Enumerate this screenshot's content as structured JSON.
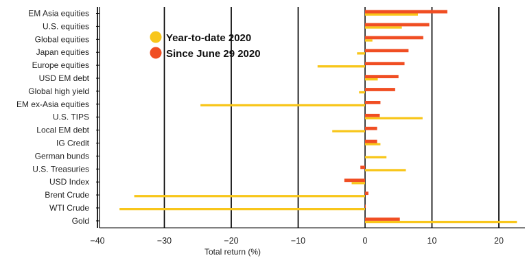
{
  "chart_data": {
    "type": "bar",
    "orientation": "horizontal",
    "categories": [
      "EM Asia equities",
      "U.S. equities",
      "Global equities",
      "Japan equities",
      "Europe equities",
      "USD EM debt",
      "Global high yield",
      "EM ex-Asia equities",
      "U.S. TIPS",
      "Local EM debt",
      "IG Credit",
      "German bunds",
      "U.S. Treasuries",
      "USD Index",
      "Brent Crude",
      "WTI Crude",
      "Gold"
    ],
    "series": [
      {
        "name": "Since June 29 2020",
        "color": "#f04e23",
        "values": [
          12.3,
          9.6,
          8.7,
          6.5,
          5.9,
          5.0,
          4.5,
          2.3,
          2.2,
          1.8,
          1.8,
          0.0,
          -0.7,
          -3.1,
          0.5,
          0.1,
          5.2
        ]
      },
      {
        "name": "Year-to-date 2020",
        "color": "#f8c61b",
        "values": [
          7.9,
          5.5,
          1.1,
          -1.2,
          -7.1,
          1.9,
          -0.9,
          -24.6,
          8.6,
          -4.9,
          2.3,
          3.2,
          6.1,
          -2.0,
          -34.5,
          -36.7,
          22.7
        ]
      }
    ],
    "xlabel": "Total return (%)",
    "xlim": [
      -40,
      23
    ],
    "xticks": [
      -40,
      -30,
      -20,
      -10,
      0,
      10,
      20
    ],
    "grid": "vertical",
    "legend_position": "upper-left inside plot"
  }
}
